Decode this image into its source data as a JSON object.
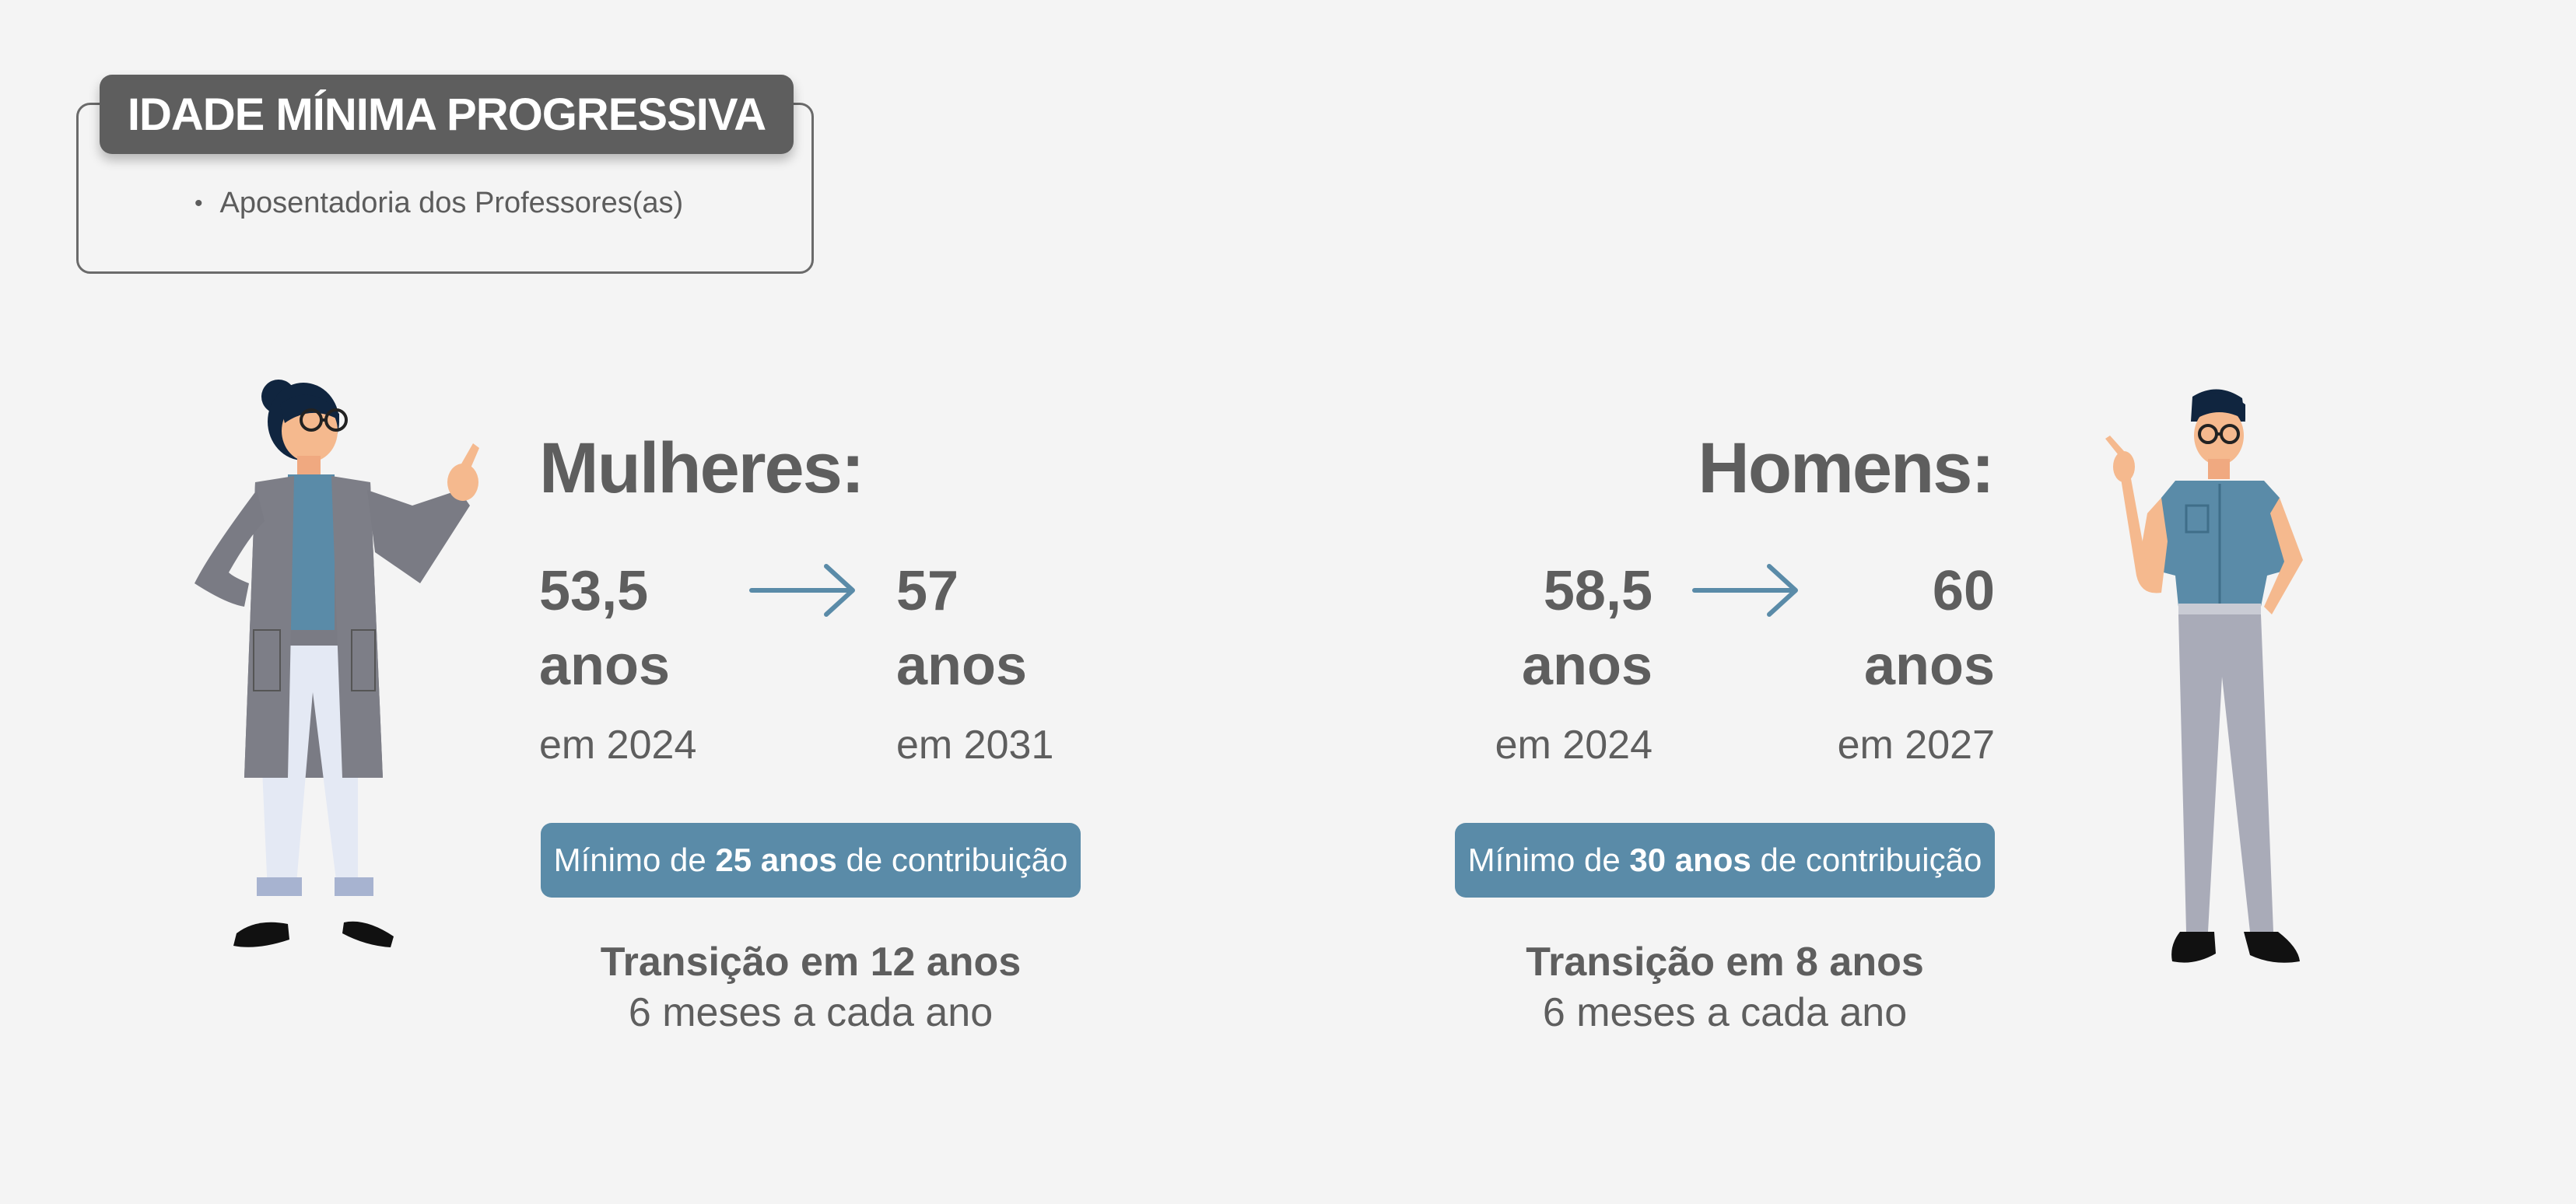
{
  "header": {
    "title": "IDADE MÍNIMA PROGRESSIVA",
    "bullet": "Aposentadoria dos Professores(as)"
  },
  "women": {
    "title": "Mulheres:",
    "from": {
      "age": "53,5",
      "unit": "anos",
      "year": "em 2024"
    },
    "to": {
      "age": "57",
      "unit": "anos",
      "year": "em 2031"
    },
    "contribution": {
      "prefix": "Mínimo de",
      "highlight": "25 anos",
      "suffix": "de contribuição"
    },
    "transition": {
      "line1": "Transição em 12 anos",
      "line2": "6 meses a cada ano"
    }
  },
  "men": {
    "title": "Homens:",
    "from": {
      "age": "58,5",
      "unit": "anos",
      "year": "em 2024"
    },
    "to": {
      "age": "60",
      "unit": "anos",
      "year": "em 2027"
    },
    "contribution": {
      "prefix": "Mínimo de",
      "highlight": "30 anos",
      "suffix": "de contribuição"
    },
    "transition": {
      "line1": "Transição em 8 anos",
      "line2": "6 meses a cada ano"
    }
  },
  "colors": {
    "accent": "#5a8ba8",
    "text": "#5e5e5e",
    "background": "#f4f4f4",
    "header": "#5e5e5e"
  },
  "icons": {
    "arrow": "arrow-right-icon",
    "woman": "woman-teacher-illustration",
    "man": "man-teacher-illustration"
  }
}
